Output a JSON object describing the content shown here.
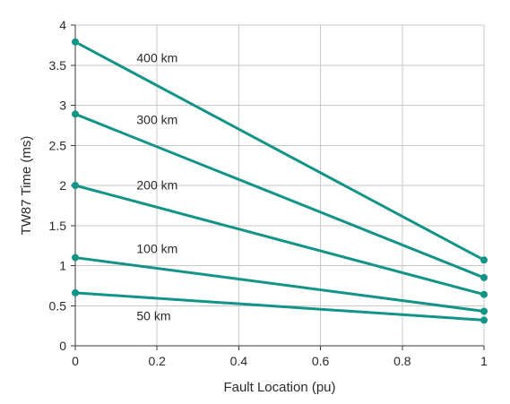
{
  "chart_data": {
    "type": "line",
    "title": "",
    "xlabel": "Fault Location (pu)",
    "ylabel": "TW87 Time (ms)",
    "xlim": [
      0,
      1
    ],
    "ylim": [
      0,
      4
    ],
    "xticks": [
      0,
      0.2,
      0.4,
      0.6,
      0.8,
      1
    ],
    "xtick_labels": [
      "0",
      "0.2",
      "0.4",
      "0.6",
      "0.8",
      "1"
    ],
    "yticks": [
      0,
      0.5,
      1,
      1.5,
      2,
      2.5,
      3,
      3.5,
      4
    ],
    "ytick_labels": [
      "0",
      "0.5",
      "1",
      "1.5",
      "2",
      "2.5",
      "3",
      "3.5",
      "4"
    ],
    "grid": true,
    "legend": "none",
    "line_color": "#139486",
    "series": [
      {
        "name": "400 km",
        "x": [
          0,
          1
        ],
        "y": [
          3.79,
          1.07
        ]
      },
      {
        "name": "300 km",
        "x": [
          0,
          1
        ],
        "y": [
          2.89,
          0.85
        ]
      },
      {
        "name": "200 km",
        "x": [
          0,
          1
        ],
        "y": [
          2.0,
          0.64
        ]
      },
      {
        "name": "100 km",
        "x": [
          0,
          1
        ],
        "y": [
          1.1,
          0.43
        ]
      },
      {
        "name": "50 km",
        "x": [
          0,
          1
        ],
        "y": [
          0.66,
          0.32
        ]
      }
    ]
  }
}
